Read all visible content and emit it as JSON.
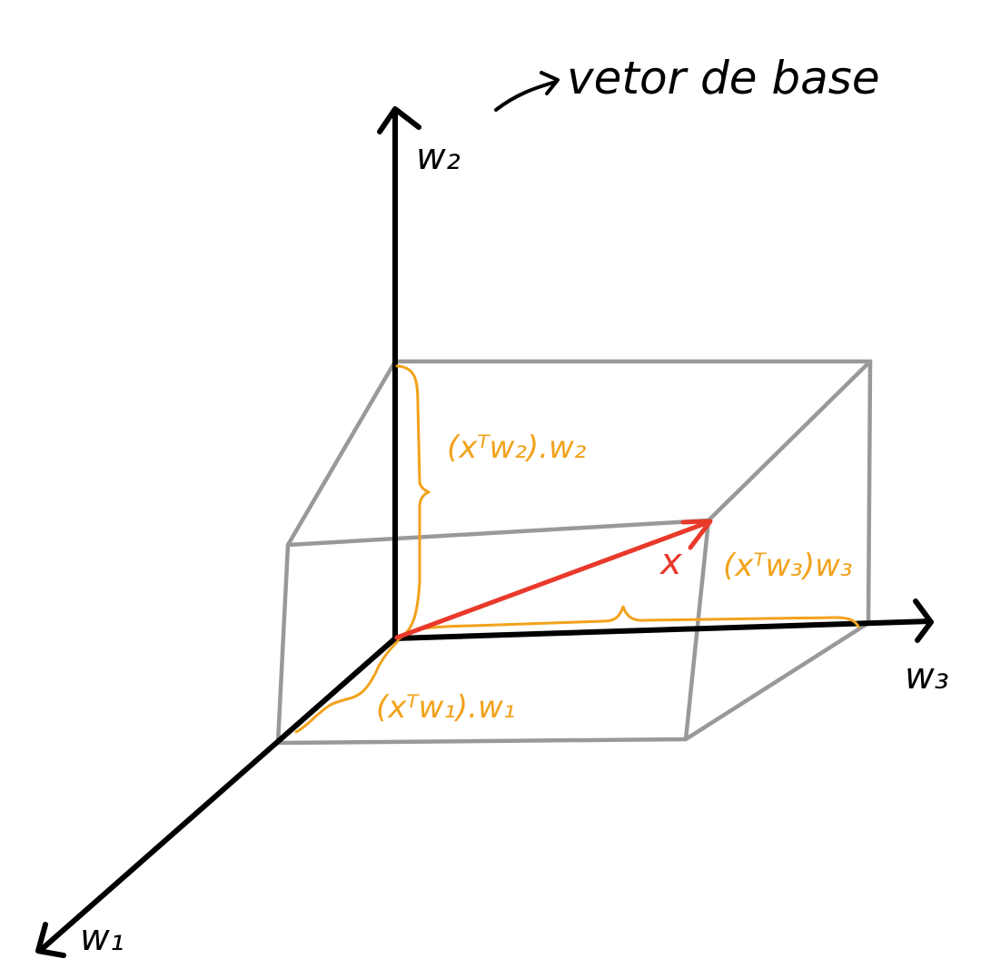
{
  "title": "vetor de base",
  "axes": {
    "w1": "w₁",
    "w2": "w₂",
    "w3": "w₃"
  },
  "vector_label": "x",
  "components": {
    "w1": "(xᵀw₁).w₁",
    "w2": "(xᵀw₂).w₂",
    "w3": "(xᵀw₃)w₃"
  },
  "colors": {
    "axis": "#000000",
    "box": "#999999",
    "vector": "#e8392a",
    "component": "#f2a21b"
  }
}
